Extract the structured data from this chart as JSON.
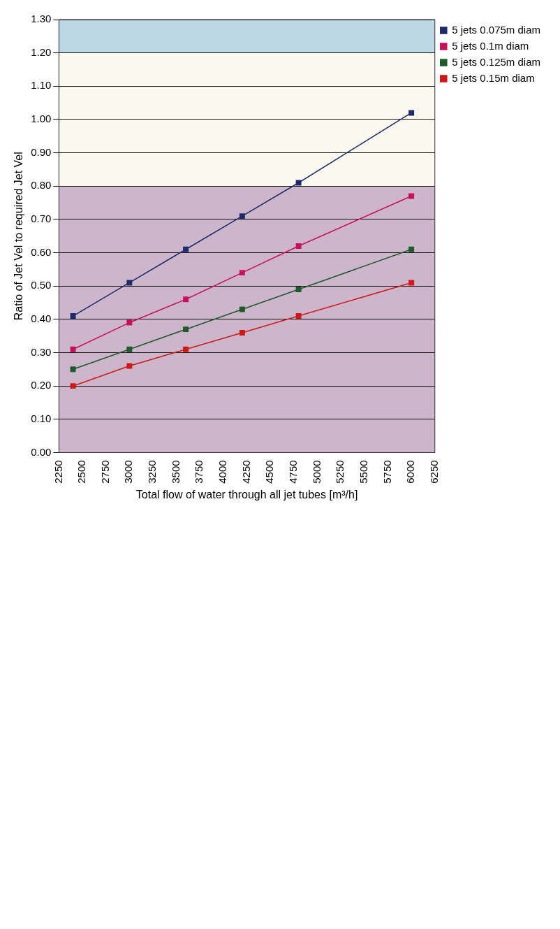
{
  "chart_data": {
    "type": "line",
    "xlabel": "Total flow of water through all jet tubes [m³/h]",
    "ylabel": "Ratio of Jet Vel to required Jet Vel",
    "x": [
      2400,
      3000,
      3600,
      4200,
      4800,
      6000
    ],
    "series": [
      {
        "name": "5 jets 0.075m diam",
        "color": "#1f2a6b",
        "values": [
          0.41,
          0.51,
          0.61,
          0.71,
          0.81,
          1.02
        ]
      },
      {
        "name": "5 jets 0.1m diam",
        "color": "#c8105a",
        "values": [
          0.31,
          0.39,
          0.46,
          0.54,
          0.62,
          0.77
        ]
      },
      {
        "name": "5 jets 0.125m diam",
        "color": "#1e5a2a",
        "values": [
          0.25,
          0.31,
          0.37,
          0.43,
          0.49,
          0.61
        ]
      },
      {
        "name": "5 jets 0.15m diam",
        "color": "#d01818",
        "values": [
          0.2,
          0.26,
          0.31,
          0.36,
          0.41,
          0.51
        ]
      }
    ],
    "xlim": [
      2250,
      6250
    ],
    "xticks": [
      2250,
      2500,
      2750,
      3000,
      3250,
      3500,
      3750,
      4000,
      4250,
      4500,
      4750,
      5000,
      5250,
      5500,
      5750,
      6000,
      6250
    ],
    "ylim": [
      0,
      1.3
    ],
    "yticks": [
      {
        "value": 0,
        "label": "0.00"
      },
      {
        "value": 0.1,
        "label": "0.10"
      },
      {
        "value": 0.2,
        "label": "0.20"
      },
      {
        "value": 0.3,
        "label": "0.30"
      },
      {
        "value": 0.4,
        "label": "0.40"
      },
      {
        "value": 0.5,
        "label": "0.50"
      },
      {
        "value": 0.6,
        "label": "0.60"
      },
      {
        "value": 0.7,
        "label": "0.70"
      },
      {
        "value": 0.8,
        "label": "0.80"
      },
      {
        "value": 0.9,
        "label": "0.90"
      },
      {
        "value": 1.0,
        "label": "1.00"
      },
      {
        "value": 1.1,
        "label": "1.10"
      },
      {
        "value": 1.2,
        "label": "1.20"
      },
      {
        "value": 1.3,
        "label": "1.30"
      }
    ],
    "bands": [
      {
        "axis": "y",
        "from": 0,
        "to": 0.8,
        "color": "#cdb6cc"
      },
      {
        "axis": "y",
        "from": 0.8,
        "to": 1.2,
        "color": "#faf8ef"
      },
      {
        "axis": "y",
        "from": 1.2,
        "to": 1.3,
        "color": "#bcd8e6"
      }
    ],
    "grid": "y",
    "legend": "right",
    "marker": "square",
    "line_style": "solid"
  }
}
